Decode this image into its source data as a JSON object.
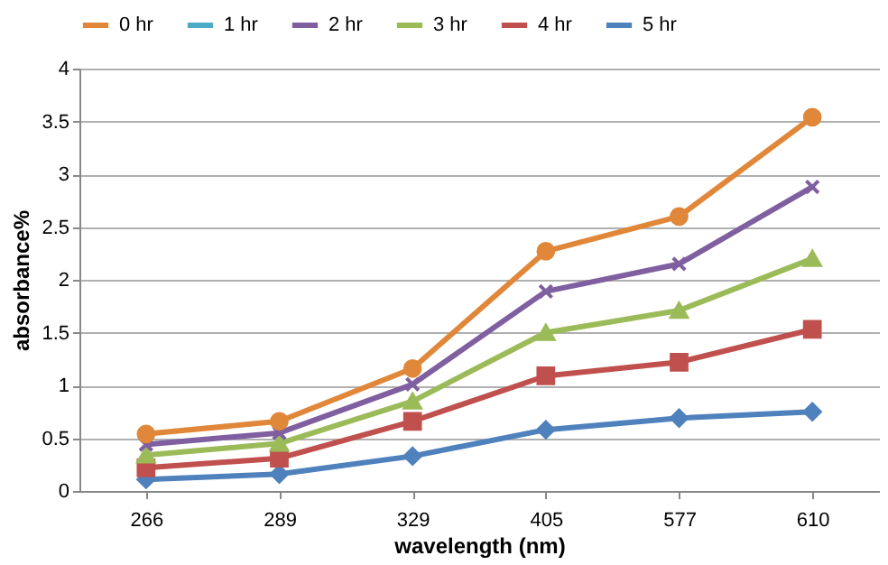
{
  "chart_data": {
    "type": "line",
    "xlabel": "wavelength (nm)",
    "ylabel": "absorbance%",
    "categories": [
      "266",
      "289",
      "329",
      "405",
      "577",
      "610"
    ],
    "ylim": [
      0,
      4
    ],
    "yticks": [
      0,
      0.5,
      1,
      1.5,
      2,
      2.5,
      3,
      3.5,
      4
    ],
    "grid": "y",
    "legend": "top",
    "series": [
      {
        "name": "0 hr",
        "color": "#e0873a",
        "marker": "circle",
        "values": [
          0.54,
          0.66,
          1.16,
          2.27,
          2.6,
          3.54
        ]
      },
      {
        "name": "1 hr",
        "color": "#4bacc6",
        "marker": "star",
        "values": [
          null,
          null,
          null,
          null,
          null,
          null
        ]
      },
      {
        "name": "2 hr",
        "color": "#7f5fa0",
        "marker": "cross",
        "values": [
          0.44,
          0.55,
          1.01,
          1.89,
          2.15,
          2.88
        ]
      },
      {
        "name": "3 hr",
        "color": "#9bbb59",
        "marker": "triangle",
        "values": [
          0.34,
          0.45,
          0.85,
          1.5,
          1.71,
          2.2
        ]
      },
      {
        "name": "4 hr",
        "color": "#c0504d",
        "marker": "square",
        "values": [
          0.22,
          0.31,
          0.66,
          1.09,
          1.22,
          1.53
        ]
      },
      {
        "name": "5 hr",
        "color": "#4f81bd",
        "marker": "diamond",
        "values": [
          0.11,
          0.16,
          0.33,
          0.58,
          0.69,
          0.75
        ]
      }
    ]
  }
}
